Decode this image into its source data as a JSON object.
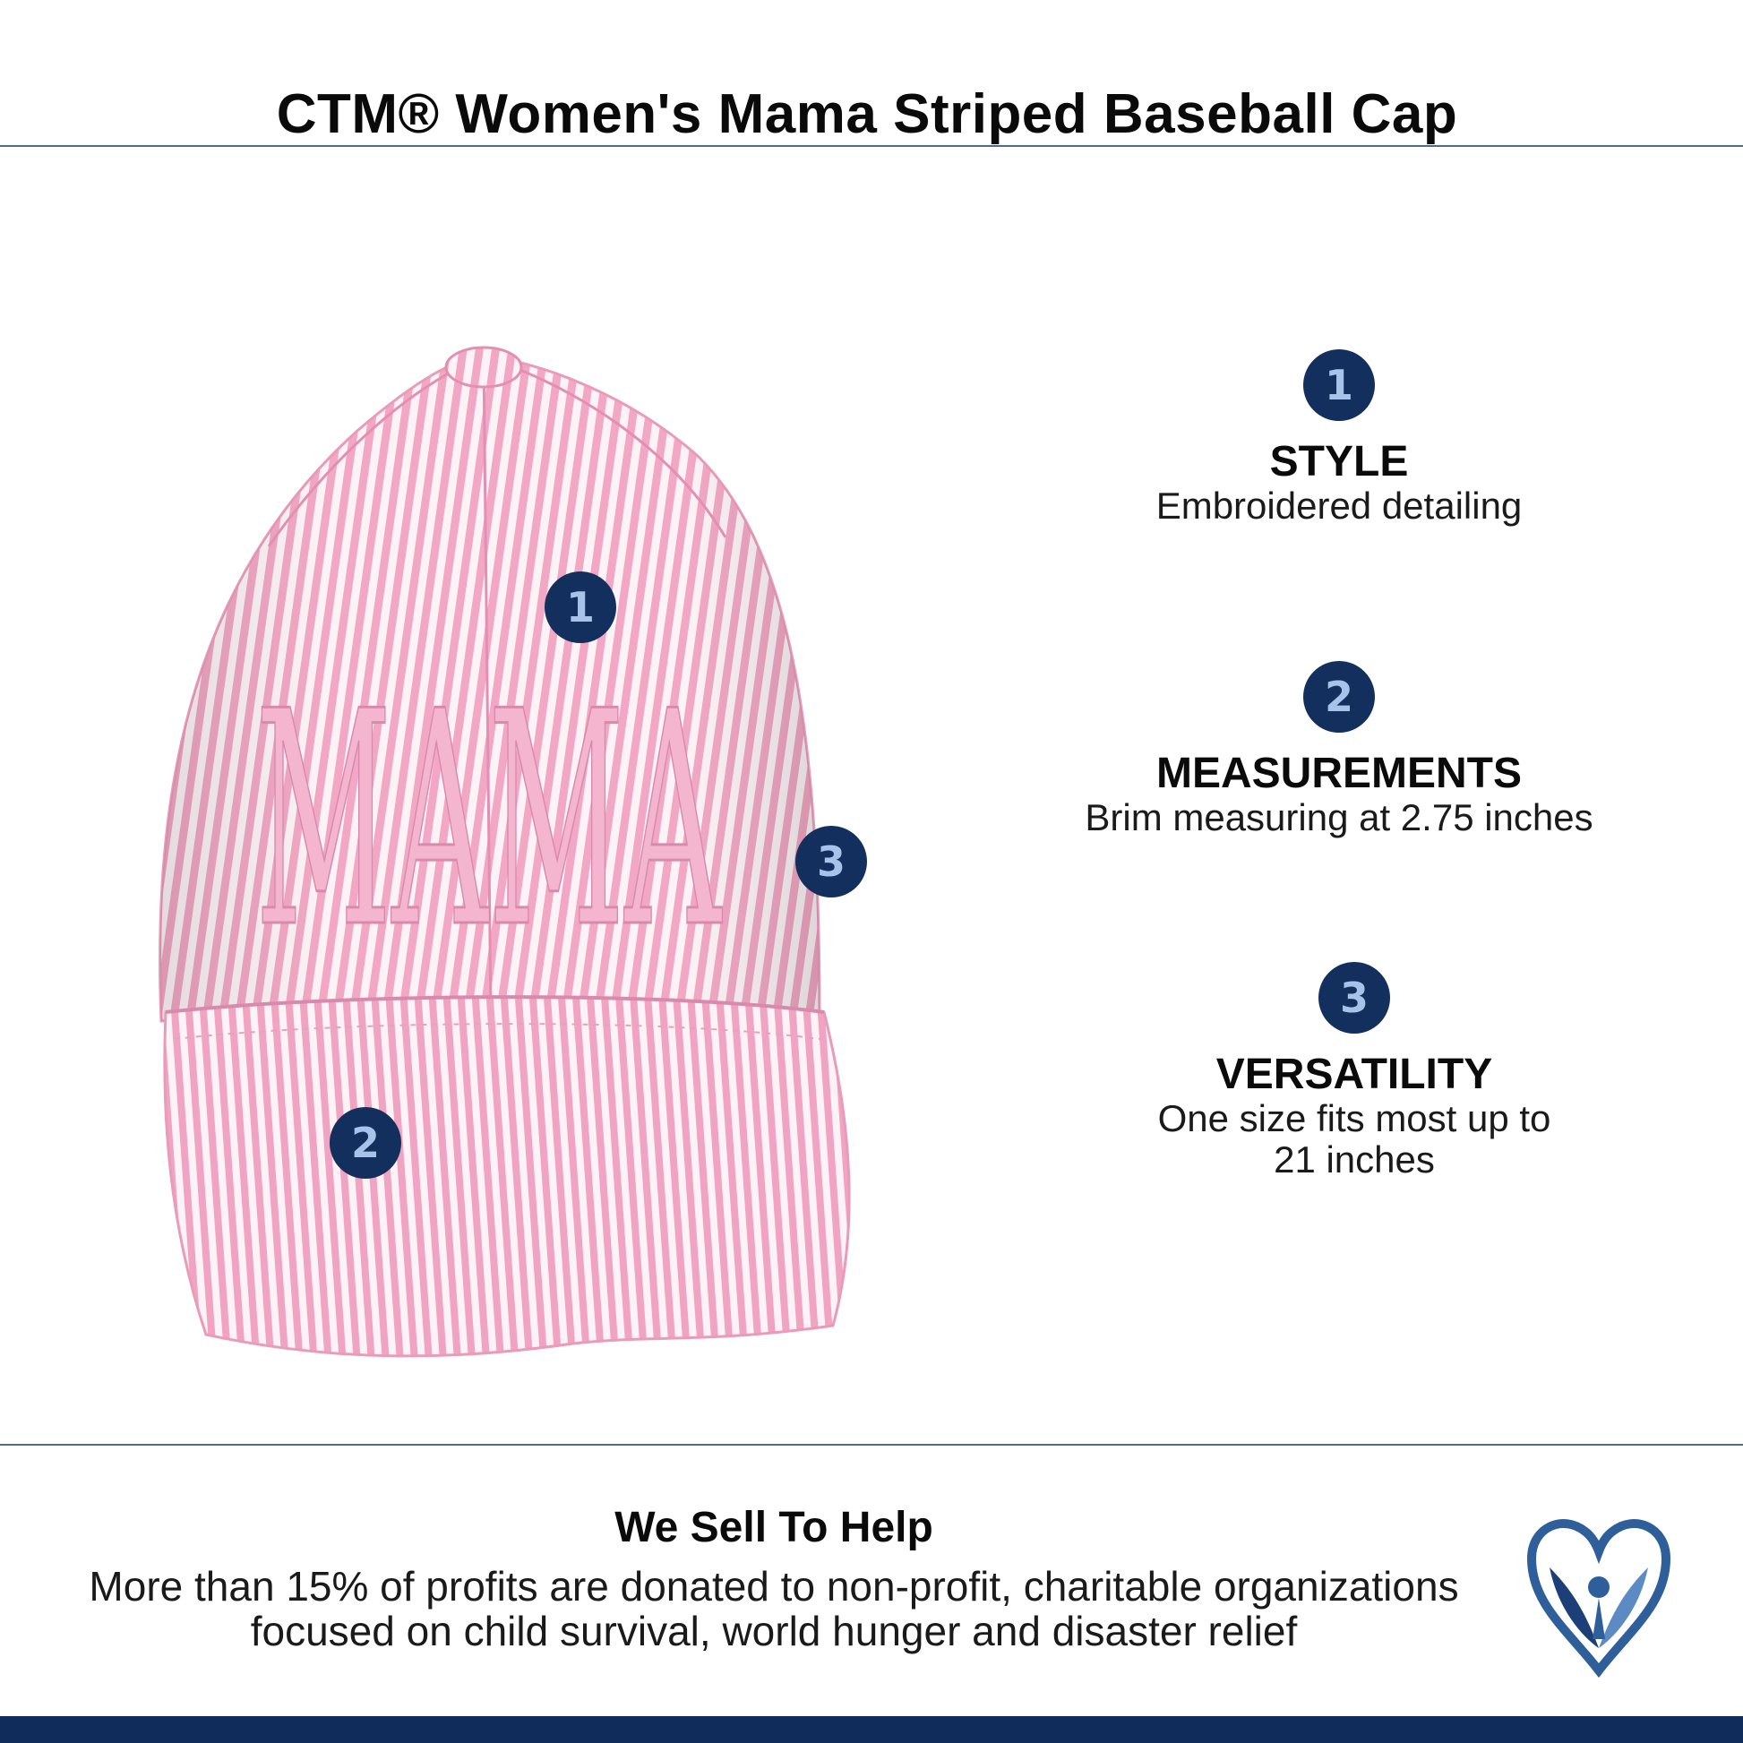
{
  "header": {
    "title": "CTM® Women's Mama Striped Baseball Cap"
  },
  "product": {
    "embroidery_text": "MAMA",
    "colors": {
      "stripe_pink": "#f2a8c4",
      "stripe_white": "#fdf3f7",
      "embroidery": "#e9a0be"
    },
    "markers": [
      "1",
      "2",
      "3"
    ]
  },
  "features": [
    {
      "number": "1",
      "title": "STYLE",
      "description": "Embroidered detailing"
    },
    {
      "number": "2",
      "title": "MEASUREMENTS",
      "description": "Brim measuring at 2.75 inches"
    },
    {
      "number": "3",
      "title": "VERSATILITY",
      "description": "One size fits most up to 21 inches"
    }
  ],
  "footer": {
    "heading": "We Sell To Help",
    "text": "More than 15% of profits are donated to non-profit, charitable organizations focused on child survival, world hunger and disaster relief",
    "logo_icon": "heart-wings-logo-icon",
    "band_color": "#0f2c5a"
  },
  "accent": {
    "badge_bg": "#132f5e",
    "badge_text": "#a7c3ea",
    "rule": "#4e6c84"
  }
}
